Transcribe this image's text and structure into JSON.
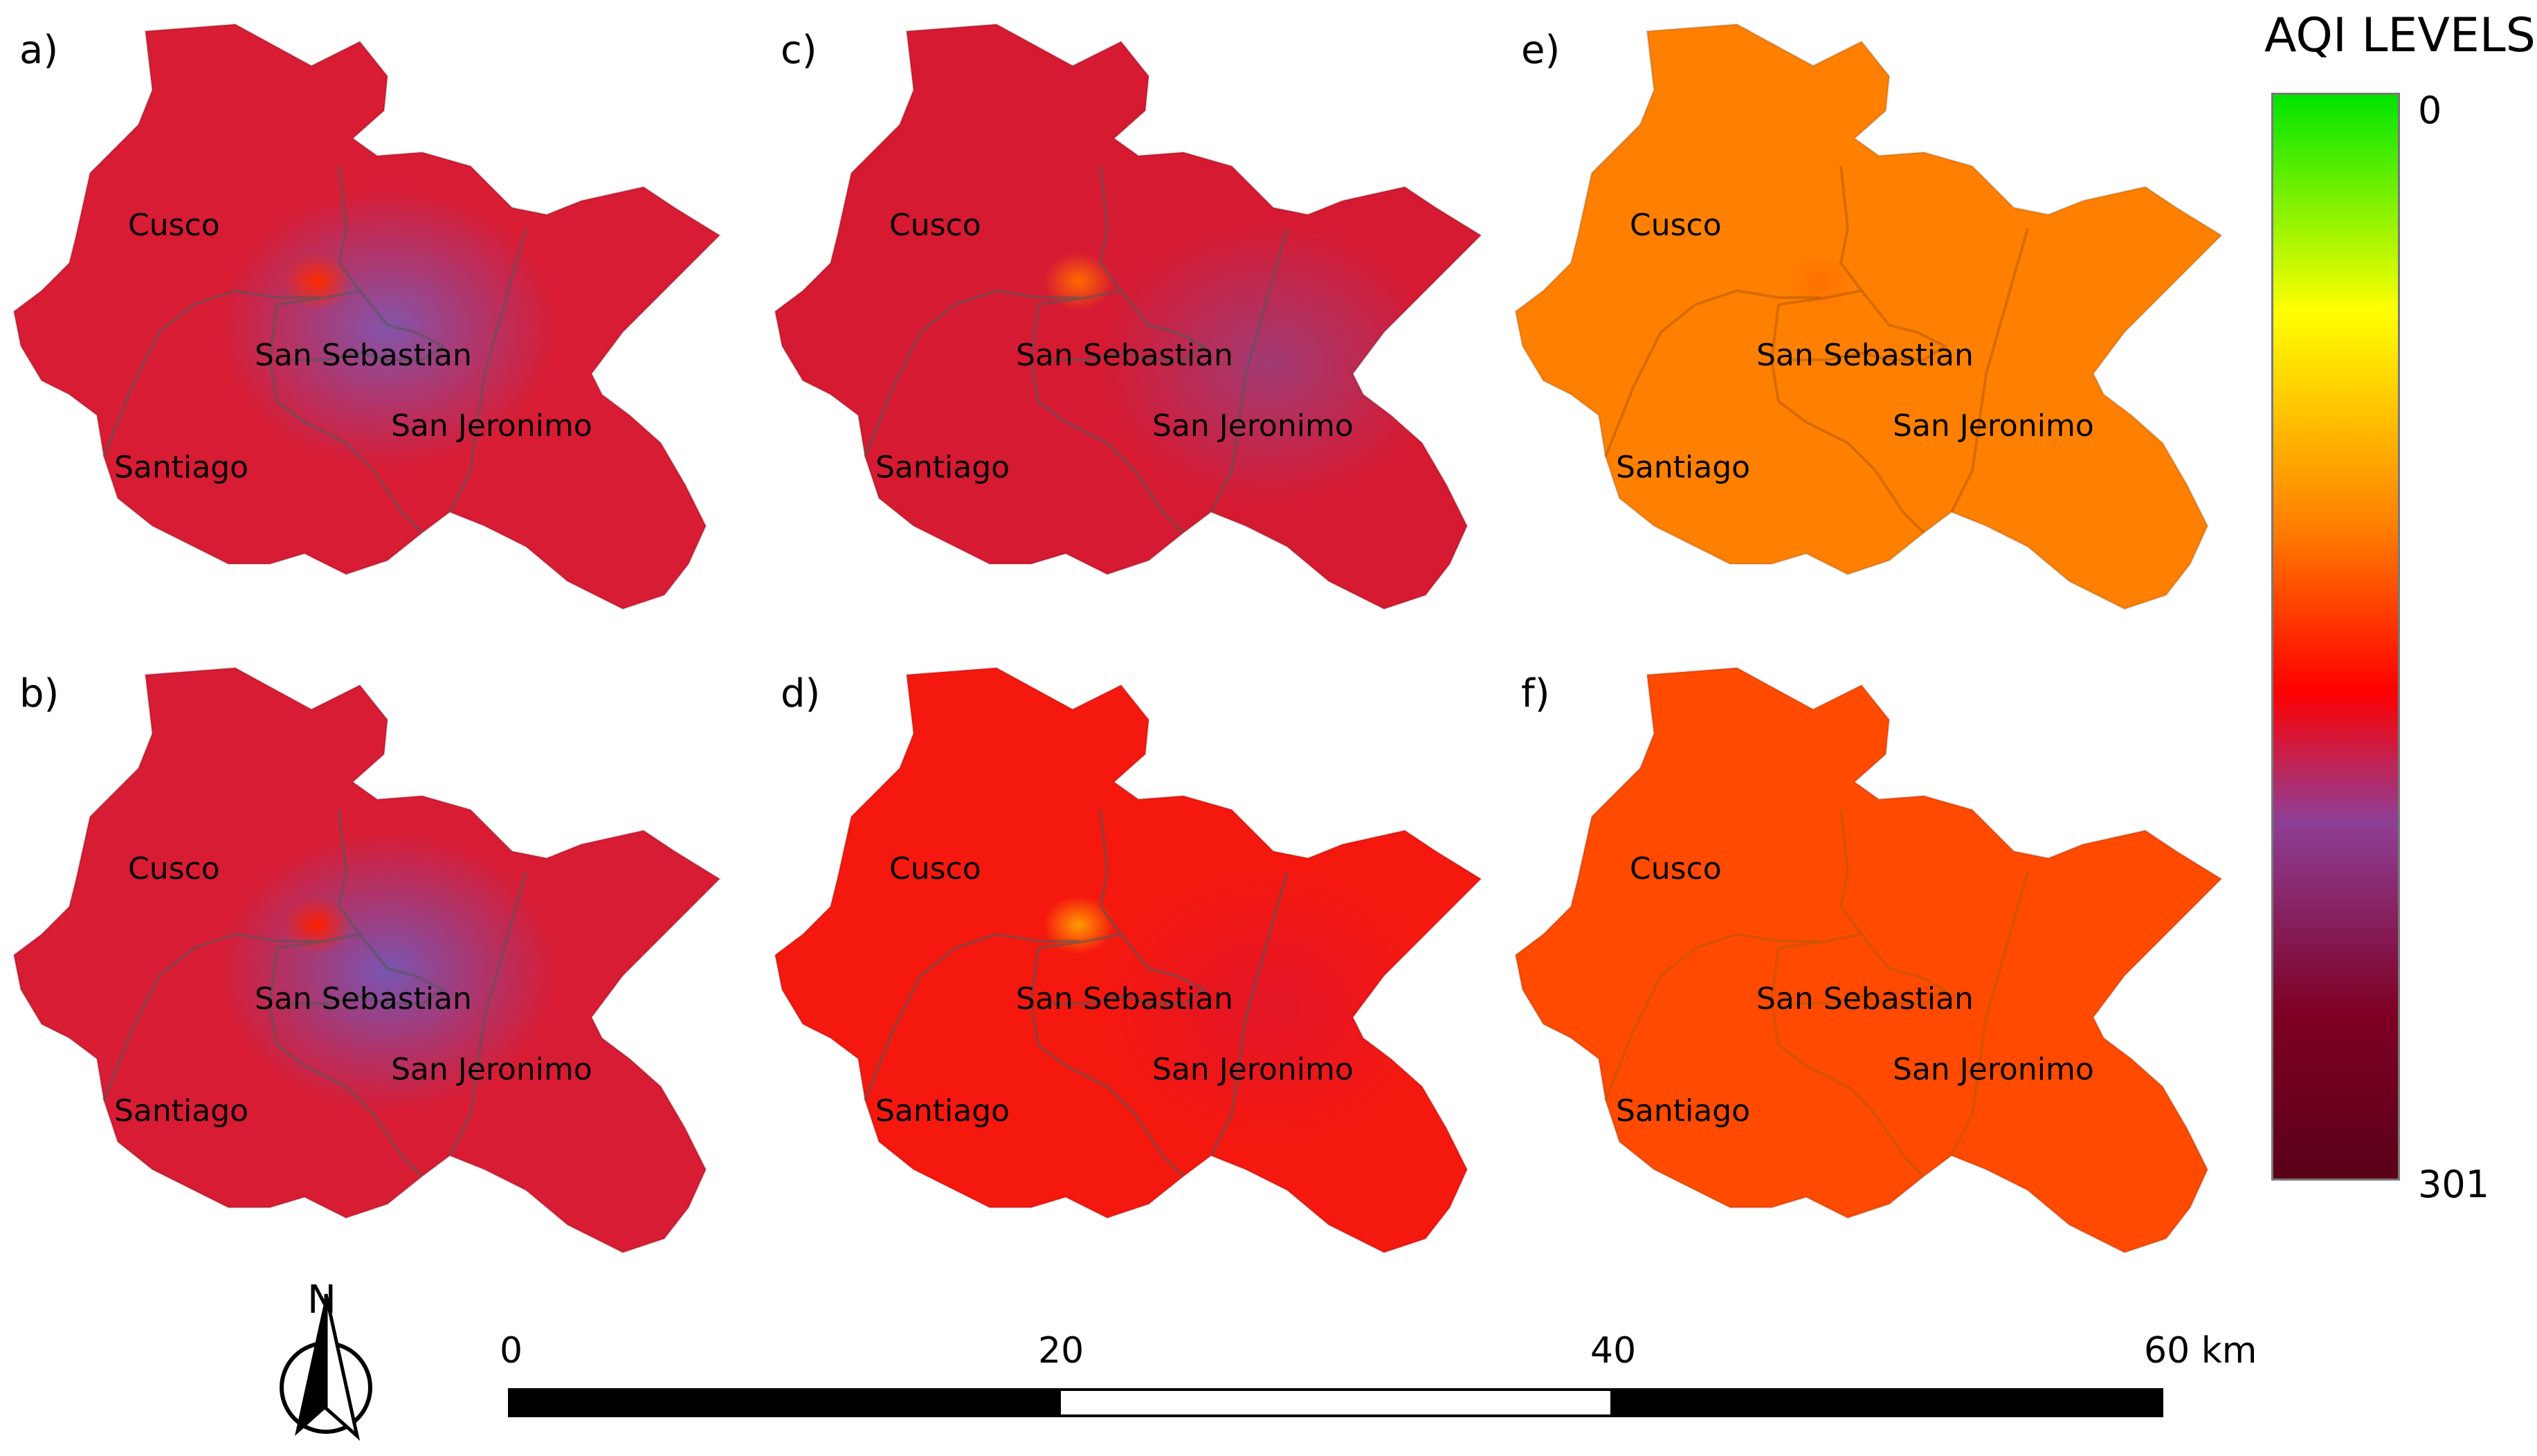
{
  "legend": {
    "title": "AQI LEVELS",
    "min_label": "0",
    "max_label": "301",
    "gradient_colors": [
      "#00e400",
      "#ffff00",
      "#ff7e00",
      "#ff0000",
      "#8f3f97",
      "#7e0023",
      "#5a0018"
    ]
  },
  "panels": [
    {
      "label": "a)",
      "base_color": "#d81c34",
      "hotspot": "#ff2a00",
      "cool_spot": "#7a5ab8"
    },
    {
      "label": "b)",
      "base_color": "#d81c34",
      "hotspot": "#ff2000",
      "cool_spot": "#6e5bc0"
    },
    {
      "label": "c)",
      "base_color": "#d61a32",
      "hotspot": "#ff6a00",
      "cool_spot": "#9a3f7c"
    },
    {
      "label": "d)",
      "base_color": "#f5180f",
      "hotspot": "#ff9a00",
      "cool_spot": "#e0152a"
    },
    {
      "label": "e)",
      "base_color": "#ff8000",
      "hotspot": "#ff7000",
      "cool_spot": "#ff8000"
    },
    {
      "label": "f)",
      "base_color": "#ff4a00",
      "hotspot": "#ff4a00",
      "cool_spot": "#ff4a00"
    }
  ],
  "districts": {
    "cusco": "Cusco",
    "san_sebastian": "San Sebastian",
    "san_jeronimo": "San Jeronimo",
    "santiago": "Santiago"
  },
  "scale_bar": {
    "labels": [
      "0",
      "20",
      "40",
      "60 km"
    ]
  },
  "north_arrow": {
    "letter": "N",
    "icon": "north-arrow-icon"
  }
}
